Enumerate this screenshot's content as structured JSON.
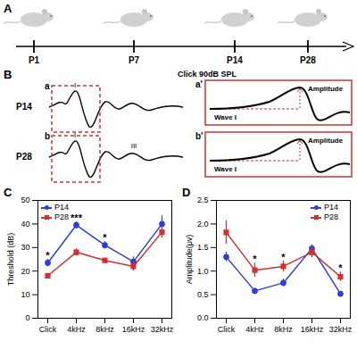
{
  "timeline": {
    "label": "A",
    "points": [
      "P1",
      "P7",
      "P14",
      "P28"
    ]
  },
  "waveforms": {
    "label": "B",
    "title": "Click 90dB SPL",
    "zoom_title": "Wave I",
    "measure_label": "Amplitude",
    "traces": [
      {
        "name": "P14",
        "box_label": "a",
        "peak_labels": [
          "I"
        ],
        "zoom_label": "a'"
      },
      {
        "name": "P28",
        "box_label": "b",
        "peak_labels": [
          "I",
          "III"
        ],
        "zoom_label": "b'"
      }
    ]
  },
  "chart_data": [
    {
      "label": "C",
      "type": "line",
      "y_label": "Threshold (dB)",
      "categories": [
        "Click",
        "4kHz",
        "8kHz",
        "16kHz",
        "32kHz"
      ],
      "series": [
        {
          "name": "P14",
          "color": "#2f3fd0",
          "marker": "circle",
          "values": [
            23.5,
            39.5,
            31,
            24,
            40
          ],
          "errors": [
            1.5,
            1.5,
            1.5,
            2,
            3.5
          ]
        },
        {
          "name": "P28",
          "color": "#d03030",
          "marker": "square",
          "values": [
            18,
            28,
            24.5,
            22,
            36.5
          ],
          "errors": [
            1,
            1.5,
            1,
            2,
            2.5
          ]
        }
      ],
      "ylim": [
        0,
        50
      ],
      "yticks": [
        0,
        10,
        20,
        30,
        40,
        50
      ],
      "legend": "top-left",
      "annotations": [
        {
          "category": "Click",
          "text": "*"
        },
        {
          "category": "4kHz",
          "text": "***"
        },
        {
          "category": "8kHz",
          "text": "*"
        }
      ]
    },
    {
      "label": "D",
      "type": "line",
      "y_label": "Amplitude(μv)",
      "categories": [
        "Click",
        "4kHz",
        "8kHz",
        "16kHz",
        "32kHz"
      ],
      "series": [
        {
          "name": "P14",
          "color": "#2f3fd0",
          "marker": "circle",
          "values": [
            1.3,
            0.58,
            0.75,
            1.48,
            0.52
          ],
          "errors": [
            0.1,
            0.05,
            0.08,
            0.08,
            0.05
          ]
        },
        {
          "name": "P28",
          "color": "#d03030",
          "marker": "square",
          "values": [
            1.82,
            1.02,
            1.1,
            1.4,
            0.88
          ],
          "errors": [
            0.25,
            0.15,
            0.12,
            0.12,
            0.1
          ]
        }
      ],
      "ylim": [
        0,
        2.5
      ],
      "yticks": [
        {
          "value": 0,
          "label": "0.0"
        },
        0.5,
        {
          "value": 1,
          "label": "1.0"
        },
        1.5,
        {
          "value": 2,
          "label": "2.0"
        },
        2.5
      ],
      "legend": "top-right",
      "annotations": [
        {
          "category": "4kHz",
          "text": "*"
        },
        {
          "category": "8kHz",
          "text": "*"
        },
        {
          "category": "32kHz",
          "text": "*"
        }
      ]
    }
  ]
}
